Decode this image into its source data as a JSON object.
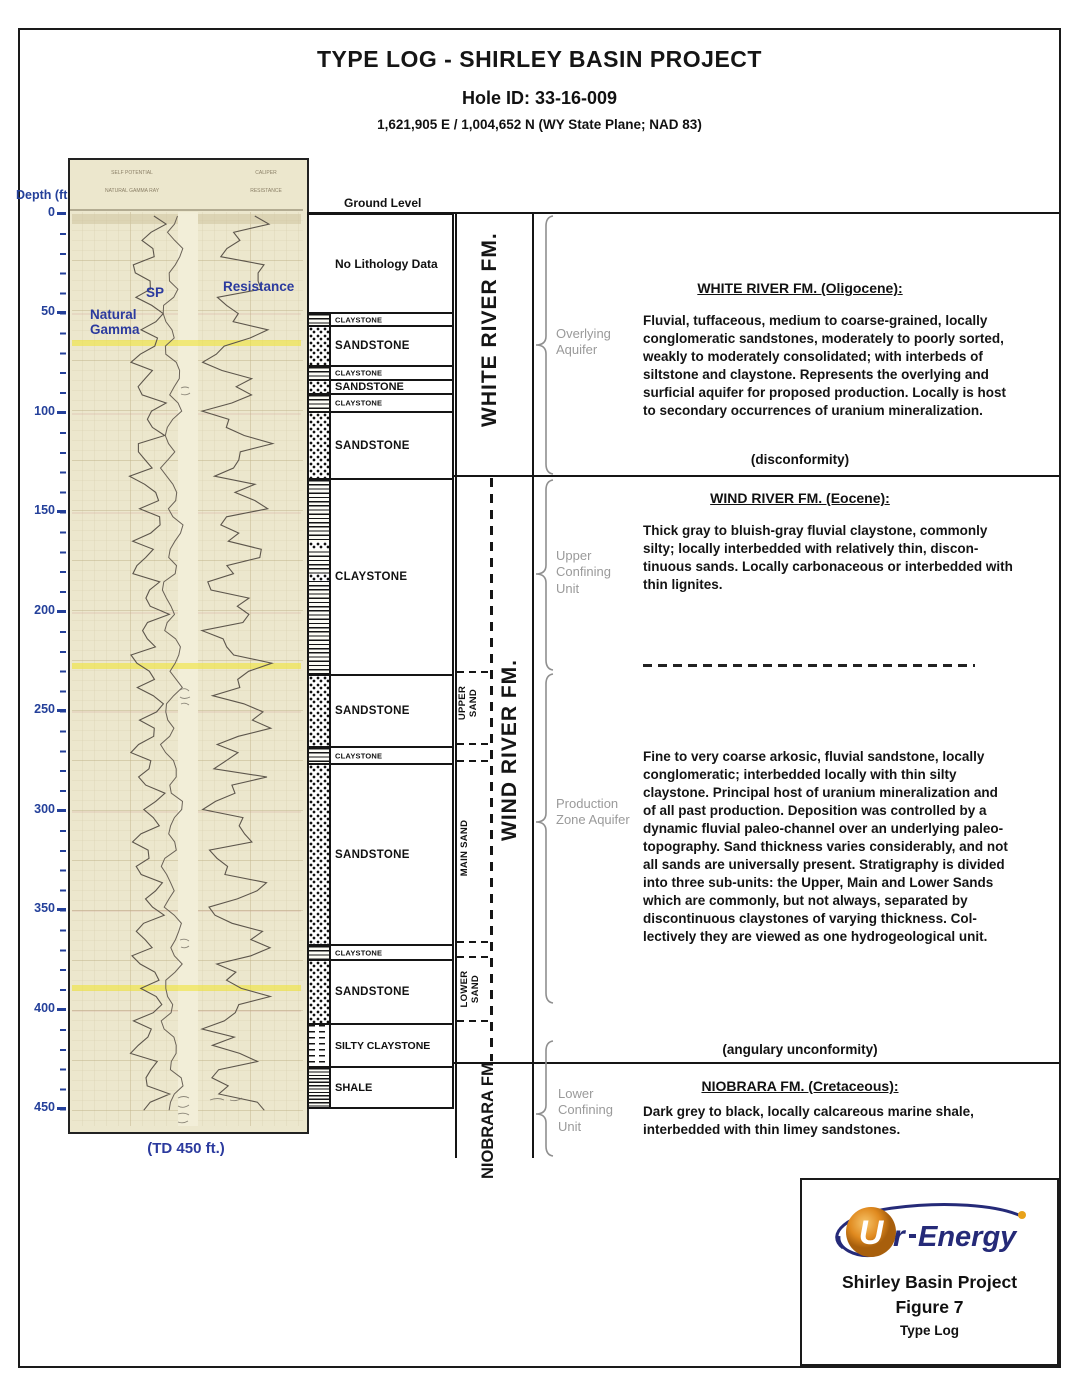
{
  "header": {
    "title": "TYPE LOG - SHIRLEY BASIN PROJECT",
    "hole_id": "Hole ID:  33-16-009",
    "coordinates": "1,621,905 E / 1,004,652 N (WY State Plane; NAD 83)"
  },
  "depth_scale": {
    "axis_label": "Depth (ft.)",
    "labels": [
      "0",
      "50",
      "100",
      "150",
      "200",
      "250",
      "300",
      "350",
      "400",
      "450"
    ],
    "td_note": "(TD 450 ft.)"
  },
  "well_log": {
    "header_labels": {
      "self_potential": "SELF POTENTIAL",
      "caliper": "CALIPER",
      "natural_gamma_ray": "NATURAL GAMMA RAY",
      "resistance_small": "RESISTANCE"
    },
    "curve_labels": {
      "natural_gamma": "Natural\nGamma",
      "sp": "SP",
      "resistance": "Resistance"
    }
  },
  "ground_level_label": "Ground Level",
  "lithology": {
    "units": [
      {
        "label": "No Lithology Data",
        "pattern": "none"
      },
      {
        "label": "CLAYSTONE",
        "pattern": "claystone"
      },
      {
        "label": "SANDSTONE",
        "pattern": "sandstone"
      },
      {
        "label": "CLAYSTONE",
        "pattern": "claystone"
      },
      {
        "label": "SANDSTONE",
        "pattern": "sandstone"
      },
      {
        "label": "CLAYSTONE",
        "pattern": "claystone"
      },
      {
        "label": "SANDSTONE",
        "pattern": "sandstone"
      },
      {
        "label": "CLAYSTONE",
        "pattern": "claystone"
      },
      {
        "label": "SANDSTONE",
        "pattern": "sandstone"
      },
      {
        "label": "CLAYSTONE",
        "pattern": "claystone"
      },
      {
        "label": "SANDSTONE",
        "pattern": "sandstone"
      },
      {
        "label": "CLAYSTONE",
        "pattern": "claystone"
      },
      {
        "label": "SANDSTONE",
        "pattern": "sandstone"
      },
      {
        "label": "SILTY CLAYSTONE",
        "pattern": "silty-claystone"
      },
      {
        "label": "SHALE",
        "pattern": "shale"
      }
    ]
  },
  "formations": {
    "white_river": {
      "column_label": "WHITE RIVER FM."
    },
    "wind_river": {
      "column_label": "WIND  RIVER  FM.",
      "sands": [
        "UPPER SAND",
        "MAIN SAND",
        "LOWER SAND"
      ]
    },
    "niobrara": {
      "column_label": "NIOBRARA FM."
    }
  },
  "hydro_units": [
    {
      "label": "Overlying Aquifer"
    },
    {
      "label": "Upper Confining Unit"
    },
    {
      "label": "Production Zone Aquifer"
    },
    {
      "label": "Lower Confining Unit"
    }
  ],
  "descriptions": {
    "white_river": {
      "heading": "WHITE RIVER FM. (Oligocene):",
      "body": "Fluvial, tuffaceous, medium to coarse-grained, locally\nconglomeratic sandstones,  moderately to poorly sorted,\nweakly to moderately consolidated;  with interbeds of\nsiltstone and claystone.    Represents the overlying and\nsurficial aquifer for proposed production.  Locally is host\nto secondary  occurrences of uranium mineralization.",
      "boundary_note": "(disconformity)"
    },
    "wind_river": {
      "heading": "WIND RIVER FM. (Eocene):",
      "body_upper": "Thick gray to bluish-gray fluvial claystone, commonly\nsilty; locally interbedded with relatively thin, discon-\ntinuous sands. Locally carbonaceous or interbedded with\nthin lignites.",
      "body_lower": "Fine to very coarse arkosic, fluvial sandstone, locally\nconglomeratic; interbedded locally with thin silty\nclaystone.  Principal host of uranium mineralization and\nof all past production. Deposition was controlled by a\ndynamic fluvial paleo-channel over an underlying paleo-\ntopography.  Sand thickness varies considerably, and not\nall sands are universally present.  Stratigraphy is divided\ninto three sub-units: the Upper, Main and Lower Sands\nwhich are commonly, but not always, separated by\ndiscontinuous claystones of varying thickness.   Col-\nlectively they are viewed as one hydrogeological unit.",
      "boundary_note": "(angulary unconformity)"
    },
    "niobrara": {
      "heading": "NIOBRARA FM. (Cretaceous):",
      "body": "Dark grey to black, locally calcareous marine shale,\ninterbedded with thin limey sandstones."
    }
  },
  "title_block": {
    "logo_u": "U",
    "logo_r": "r",
    "logo_name": "Energy",
    "project": "Shirley Basin Project",
    "figure": "Figure 7",
    "subtitle": "Type Log"
  },
  "colors": {
    "accent_blue": "#2b3a9e",
    "depth_blue": "#24409a",
    "paper": "#ece7cd",
    "brace_gray": "#8f8f8f",
    "logo_navy": "#252a78",
    "logo_orange": "#e08a1f"
  }
}
